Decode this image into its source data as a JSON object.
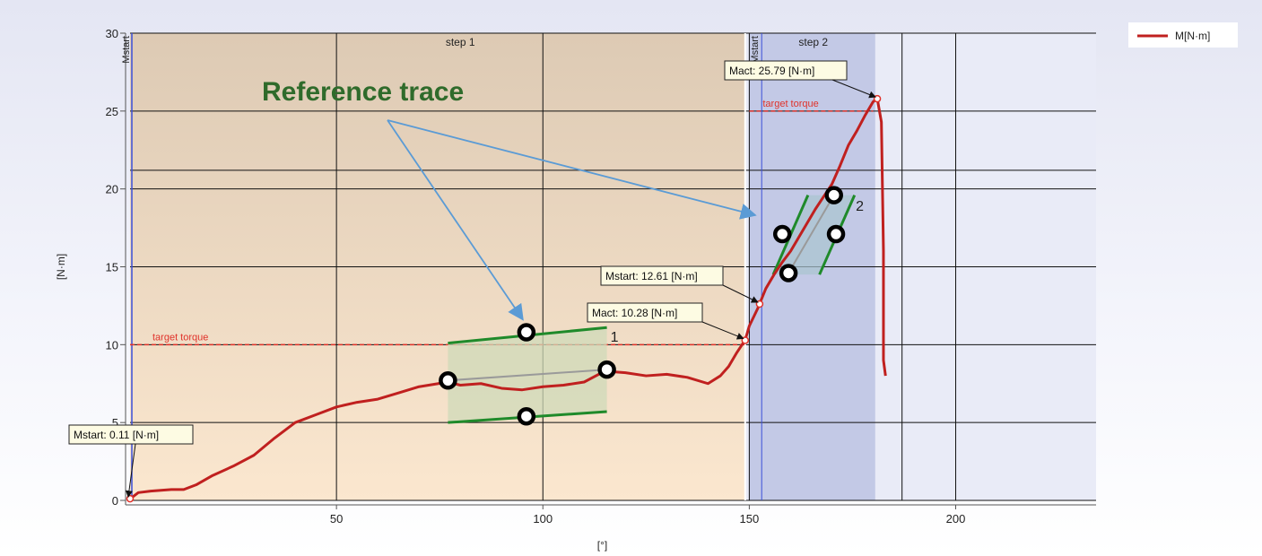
{
  "chart_data": {
    "type": "line",
    "xlabel": "[°]",
    "ylabel": "[N·m]",
    "xlim": [
      0,
      234
    ],
    "ylim": [
      0,
      30
    ],
    "x_ticks": [
      50,
      100,
      150,
      200
    ],
    "y_ticks": [
      0,
      5,
      10,
      15,
      20,
      25,
      30
    ],
    "grid": true,
    "legend": {
      "position": "top-right",
      "label": "M[N·m]",
      "color": "#c0201f"
    },
    "series": [
      {
        "name": "M[N·m]",
        "color": "#c0201f",
        "x": [
          0,
          2,
          5,
          10,
          13,
          16,
          20,
          25,
          30,
          35,
          40,
          45,
          50,
          55,
          60,
          65,
          70,
          77,
          80,
          85,
          90,
          95,
          100,
          105,
          110,
          115,
          120,
          125,
          130,
          135,
          140,
          143,
          145,
          147,
          149,
          150,
          152,
          154,
          156,
          158,
          160,
          162,
          164,
          166,
          168,
          170,
          172,
          174,
          176,
          178,
          180,
          181,
          182,
          182.5,
          182.5,
          183
        ],
        "y": [
          0.1,
          0.5,
          0.6,
          0.7,
          0.7,
          1.0,
          1.6,
          2.2,
          2.9,
          4.0,
          5.0,
          5.5,
          6.0,
          6.3,
          6.5,
          6.9,
          7.3,
          7.6,
          7.4,
          7.5,
          7.2,
          7.1,
          7.3,
          7.4,
          7.6,
          8.3,
          8.2,
          8.0,
          8.1,
          7.9,
          7.5,
          8.0,
          8.6,
          9.5,
          10.3,
          11.2,
          12.3,
          13.6,
          14.5,
          15.3,
          16.0,
          16.9,
          17.8,
          18.7,
          19.5,
          20.3,
          21.5,
          22.8,
          23.7,
          24.7,
          25.6,
          25.8,
          24.3,
          16.0,
          9.0,
          8.0
        ]
      }
    ],
    "points_of_interest": [
      {
        "label": "Mstart: 0.11 [N·m]",
        "x": 0,
        "y": 0.11
      },
      {
        "label": "Mact: 10.28 [N·m]",
        "x": 149,
        "y": 10.28
      },
      {
        "label": "Mstart: 12.61 [N·m]",
        "x": 152.5,
        "y": 12.61
      },
      {
        "label": "Mact: 25.79 [N·m]",
        "x": 181,
        "y": 25.79
      }
    ],
    "steps": [
      {
        "label": "step 1",
        "x_start": 0,
        "x_end": 149,
        "vertical_label": "Mstart"
      },
      {
        "label": "step 2",
        "x_start": 149,
        "x_end": 180.5,
        "vertical_label": "Mstart"
      }
    ],
    "target_torque": [
      {
        "label": "target torque",
        "y": 10,
        "x_start": 0,
        "x_end": 149
      },
      {
        "label": "target torque",
        "y": 25,
        "x_start": 150,
        "x_end": 180
      }
    ],
    "windows": [
      {
        "label": "1",
        "x_start": 77,
        "x_end": 115.5,
        "lower_y": [
          5.0,
          5.7
        ],
        "upper_y": [
          10.1,
          11.1
        ],
        "handles": [
          [
            77,
            7.7
          ],
          [
            96,
            10.8
          ],
          [
            96,
            5.4
          ],
          [
            115.5,
            8.4
          ]
        ]
      },
      {
        "label": "2",
        "corners": [
          [
            156,
            14.5
          ],
          [
            164,
            19.6
          ],
          [
            175.5,
            19.6
          ],
          [
            167,
            14.5
          ]
        ],
        "handles": [
          [
            158,
            17.1
          ],
          [
            159.5,
            14.6
          ],
          [
            170.5,
            19.6
          ],
          [
            171,
            17.1
          ]
        ]
      }
    ],
    "annotation": {
      "text": "Reference trace",
      "targets": [
        [
          96,
          11.5
        ],
        [
          152.3,
          18.2
        ]
      ]
    },
    "extra_hlines": [
      21.2
    ],
    "extra_vlines": [
      153,
      187
    ]
  }
}
